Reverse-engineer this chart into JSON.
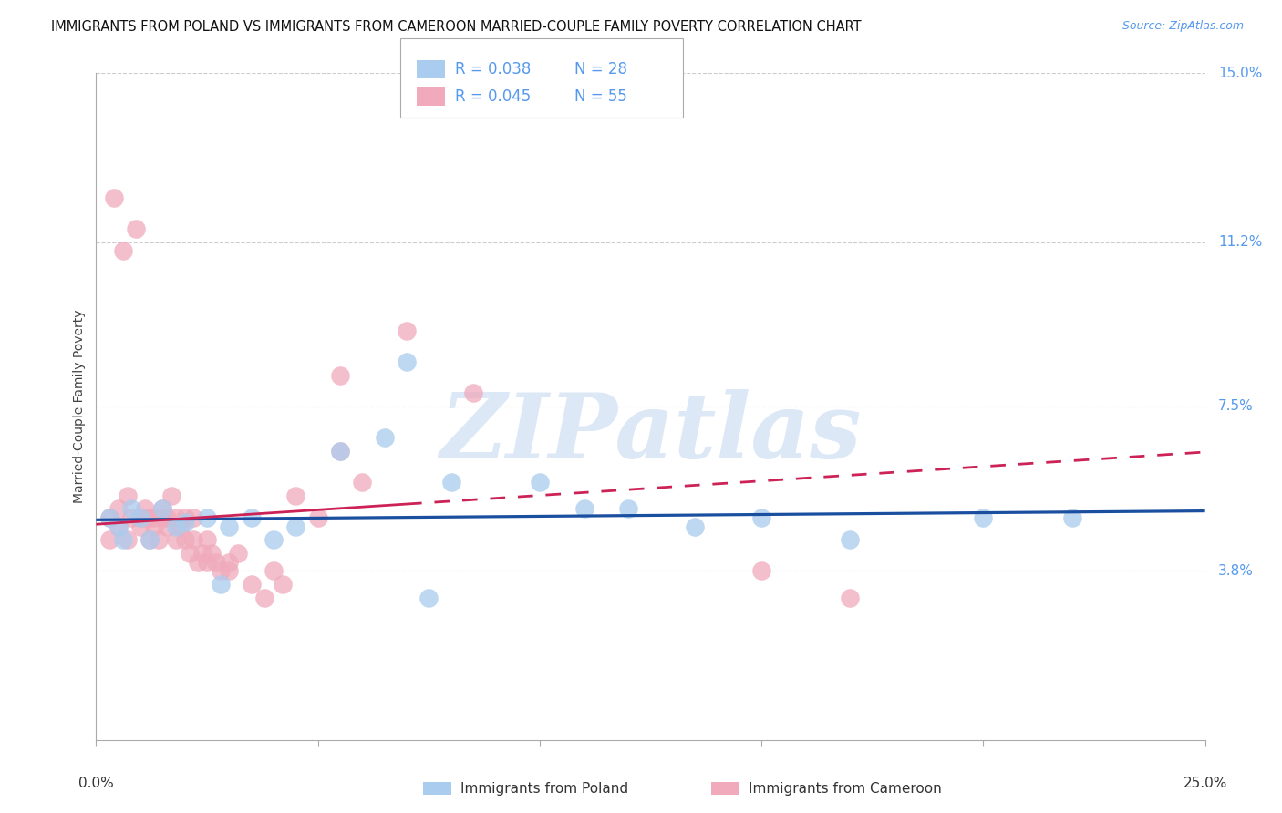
{
  "title": "IMMIGRANTS FROM POLAND VS IMMIGRANTS FROM CAMEROON MARRIED-COUPLE FAMILY POVERTY CORRELATION CHART",
  "source": "Source: ZipAtlas.com",
  "ylabel": "Married-Couple Family Poverty",
  "xlim": [
    0.0,
    25.0
  ],
  "ylim": [
    0.0,
    15.0
  ],
  "yticks": [
    3.8,
    7.5,
    11.2,
    15.0
  ],
  "ytick_labels": [
    "3.8%",
    "7.5%",
    "11.2%",
    "15.0%"
  ],
  "xtick_positions": [
    0,
    5,
    10,
    15,
    20,
    25
  ],
  "poland_R": "0.038",
  "poland_N": "28",
  "cameroon_R": "0.045",
  "cameroon_N": "55",
  "poland_color": "#aaccee",
  "cameroon_color": "#f0aabb",
  "poland_line_color": "#1a4fa0",
  "cameroon_line_color": "#cc2255",
  "poland_x": [
    0.3,
    0.5,
    0.6,
    0.8,
    1.0,
    1.2,
    1.5,
    1.8,
    2.0,
    2.5,
    3.0,
    3.5,
    4.0,
    4.5,
    5.5,
    6.5,
    7.0,
    8.0,
    10.0,
    11.0,
    12.0,
    13.5,
    15.0,
    17.0,
    20.0,
    22.0,
    2.8,
    7.5
  ],
  "poland_y": [
    5.0,
    4.8,
    4.5,
    5.2,
    5.0,
    4.5,
    5.2,
    4.8,
    4.9,
    5.0,
    4.8,
    5.0,
    4.5,
    4.8,
    6.5,
    6.8,
    8.5,
    5.8,
    5.8,
    5.2,
    5.2,
    4.8,
    5.0,
    4.5,
    5.0,
    5.0,
    3.5,
    3.2
  ],
  "cameroon_x": [
    0.3,
    0.3,
    0.4,
    0.5,
    0.5,
    0.6,
    0.7,
    0.7,
    0.8,
    0.9,
    1.0,
    1.0,
    1.1,
    1.1,
    1.2,
    1.2,
    1.3,
    1.3,
    1.4,
    1.5,
    1.5,
    1.6,
    1.6,
    1.7,
    1.8,
    1.8,
    1.9,
    2.0,
    2.0,
    2.1,
    2.2,
    2.2,
    2.3,
    2.4,
    2.5,
    2.5,
    2.6,
    2.7,
    2.8,
    3.0,
    3.0,
    3.2,
    3.5,
    3.8,
    4.0,
    4.2,
    4.5,
    5.0,
    5.5,
    5.5,
    6.0,
    7.0,
    15.0,
    17.0,
    8.5
  ],
  "cameroon_y": [
    5.0,
    4.5,
    12.2,
    5.2,
    4.8,
    11.0,
    4.5,
    5.5,
    5.0,
    11.5,
    4.8,
    5.0,
    5.2,
    5.0,
    5.0,
    4.5,
    4.8,
    5.0,
    4.5,
    5.0,
    5.2,
    4.8,
    5.0,
    5.5,
    4.5,
    5.0,
    4.8,
    5.0,
    4.5,
    4.2,
    4.5,
    5.0,
    4.0,
    4.2,
    4.5,
    4.0,
    4.2,
    4.0,
    3.8,
    3.8,
    4.0,
    4.2,
    3.5,
    3.2,
    3.8,
    3.5,
    5.5,
    5.0,
    8.2,
    6.5,
    5.8,
    9.2,
    3.8,
    3.2,
    7.8
  ],
  "cameroon_line_solid_end": 7.0,
  "poland_line_intercept": 4.95,
  "poland_line_slope": 0.008,
  "cameroon_line_intercept": 4.85,
  "cameroon_line_slope": 0.065,
  "background_color": "#ffffff",
  "grid_color": "#cccccc",
  "watermark_text": "ZIPatlas",
  "watermark_color": "#dce8f5"
}
